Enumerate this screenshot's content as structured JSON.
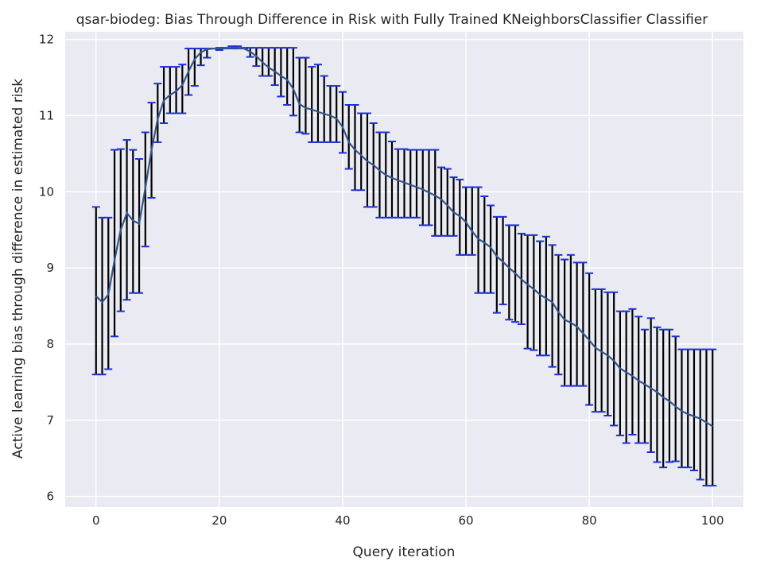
{
  "chart_data": {
    "type": "line",
    "title": "qsar-biodeg: Bias Through Difference in Risk with Fully Trained KNeighborsClassifier Classifier",
    "xlabel": "Query iteration",
    "ylabel": "Active learning bias through difference in estimated risk",
    "xlim": [
      -5,
      105
    ],
    "ylim": [
      5.86,
      12.1
    ],
    "xticks": [
      0,
      20,
      40,
      60,
      80,
      100
    ],
    "yticks": [
      6,
      7,
      8,
      9,
      10,
      11,
      12
    ],
    "grid": true,
    "colors": {
      "background": "#eaeaf2",
      "grid": "#ffffff",
      "mean_line": "#34578a",
      "error_bar": "#000000",
      "cap": "#1f2fd6"
    },
    "mean": [
      8.63,
      8.55,
      8.65,
      9.1,
      9.5,
      9.72,
      9.62,
      9.58,
      10.05,
      10.55,
      10.95,
      11.2,
      11.27,
      11.32,
      11.4,
      11.58,
      11.74,
      11.83,
      11.87,
      11.88,
      11.88,
      11.88,
      11.89,
      11.89,
      11.88,
      11.84,
      11.78,
      11.7,
      11.63,
      11.58,
      11.52,
      11.47,
      11.35,
      11.15,
      11.1,
      11.08,
      11.05,
      11.02,
      11.0,
      10.96,
      10.85,
      10.65,
      10.55,
      10.48,
      10.4,
      10.35,
      10.28,
      10.22,
      10.18,
      10.15,
      10.12,
      10.09,
      10.06,
      10.03,
      9.99,
      9.95,
      9.9,
      9.82,
      9.73,
      9.68,
      9.6,
      9.48,
      9.38,
      9.33,
      9.27,
      9.15,
      9.08,
      9.0,
      8.93,
      8.85,
      8.78,
      8.72,
      8.65,
      8.6,
      8.55,
      8.42,
      8.32,
      8.28,
      8.23,
      8.14,
      8.05,
      7.95,
      7.9,
      7.85,
      7.78,
      7.68,
      7.63,
      7.58,
      7.52,
      7.47,
      7.42,
      7.37,
      7.3,
      7.25,
      7.18,
      7.12,
      7.08,
      7.05,
      7.02,
      6.97,
      6.92
    ],
    "upper": [
      9.8,
      9.66,
      9.66,
      10.55,
      10.56,
      10.68,
      10.55,
      10.43,
      10.78,
      11.17,
      11.42,
      11.64,
      11.64,
      11.64,
      11.67,
      11.88,
      11.88,
      11.88,
      11.88,
      11.88,
      11.89,
      11.89,
      11.91,
      11.91,
      11.89,
      11.89,
      11.89,
      11.89,
      11.89,
      11.89,
      11.89,
      11.89,
      11.89,
      11.76,
      11.76,
      11.64,
      11.67,
      11.52,
      11.39,
      11.39,
      11.31,
      11.14,
      11.14,
      11.03,
      11.03,
      10.9,
      10.78,
      10.78,
      10.66,
      10.56,
      10.56,
      10.55,
      10.55,
      10.55,
      10.55,
      10.55,
      10.32,
      10.3,
      10.19,
      10.16,
      10.06,
      10.06,
      10.06,
      9.94,
      9.82,
      9.67,
      9.67,
      9.56,
      9.56,
      9.45,
      9.43,
      9.43,
      9.35,
      9.41,
      9.3,
      9.17,
      9.11,
      9.17,
      9.07,
      9.07,
      8.93,
      8.72,
      8.72,
      8.68,
      8.68,
      8.43,
      8.43,
      8.46,
      8.36,
      8.19,
      8.34,
      8.22,
      8.19,
      8.19,
      8.1,
      7.93,
      7.93,
      7.93,
      7.93,
      7.93,
      7.93
    ],
    "lower": [
      7.6,
      7.6,
      7.67,
      8.1,
      8.43,
      8.58,
      8.67,
      8.67,
      9.28,
      9.92,
      10.65,
      10.9,
      11.03,
      11.03,
      11.03,
      11.27,
      11.39,
      11.66,
      11.76,
      11.88,
      11.86,
      11.88,
      11.88,
      11.88,
      11.88,
      11.77,
      11.65,
      11.52,
      11.52,
      11.4,
      11.25,
      11.14,
      11.0,
      10.78,
      10.76,
      10.65,
      10.65,
      10.65,
      10.65,
      10.65,
      10.51,
      10.3,
      10.02,
      10.02,
      9.8,
      9.8,
      9.66,
      9.66,
      9.66,
      9.66,
      9.66,
      9.66,
      9.66,
      9.56,
      9.56,
      9.42,
      9.42,
      9.42,
      9.42,
      9.17,
      9.17,
      9.17,
      8.67,
      8.67,
      8.67,
      8.41,
      8.52,
      8.32,
      8.29,
      8.26,
      7.94,
      7.92,
      7.85,
      7.85,
      7.7,
      7.6,
      7.45,
      7.45,
      7.45,
      7.45,
      7.2,
      7.11,
      7.11,
      7.06,
      6.93,
      6.8,
      6.7,
      6.81,
      6.7,
      6.7,
      6.58,
      6.45,
      6.38,
      6.45,
      6.46,
      6.38,
      6.38,
      6.34,
      6.22,
      6.14,
      6.14
    ]
  }
}
